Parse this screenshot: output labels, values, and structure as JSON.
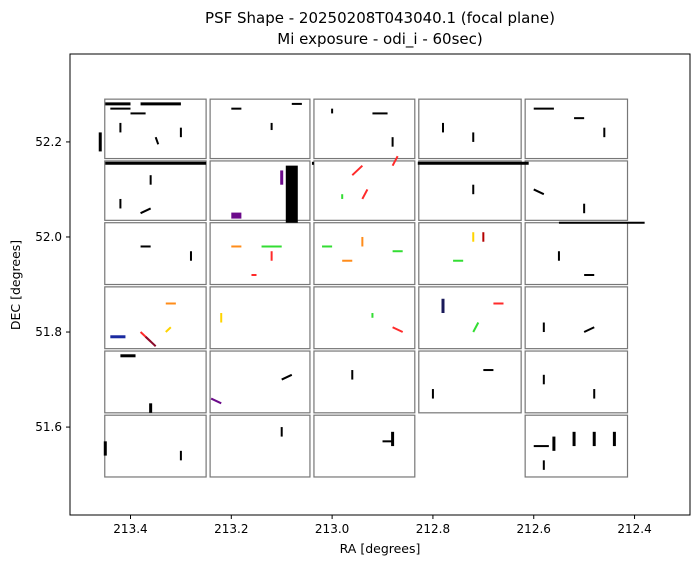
{
  "chart_data": {
    "type": "scatter",
    "title_line1": "PSF Shape - 20250208T043040.1 (focal plane)",
    "title_line2": "Mi exposure - odi_i - 60sec)",
    "xlabel": "RA [degrees]",
    "ylabel": "DEC [degrees]",
    "x_ticks": [
      "213.4",
      "213.2",
      "213.0",
      "212.8",
      "212.6",
      "212.4"
    ],
    "y_ticks": [
      "52.2",
      "52.0",
      "51.8",
      "51.6"
    ],
    "x_tick_values": [
      213.4,
      213.2,
      213.0,
      212.8,
      212.6,
      212.4
    ],
    "y_tick_values": [
      52.2,
      52.0,
      51.8,
      51.6
    ],
    "xlim": [
      213.52,
      212.29
    ],
    "ylim": [
      51.415,
      52.385
    ],
    "grid": false,
    "ota_grid": {
      "columns": [
        213.455,
        213.246,
        213.04,
        212.832,
        212.621,
        212.41
      ],
      "rows": [
        52.29,
        52.165,
        52.162,
        52.032,
        52.03,
        51.9,
        51.895,
        51.765,
        51.76,
        51.635,
        51.625,
        51.495
      ],
      "missing_cells": [
        [
          5,
          3
        ]
      ]
    },
    "psf_vectors": [
      {
        "x": 213.45,
        "y": 52.28,
        "dx": 0.05,
        "dy": 0.0,
        "color": "#000000",
        "w": 3
      },
      {
        "x": 213.38,
        "y": 52.28,
        "dx": 0.08,
        "dy": 0.0,
        "color": "#000000",
        "w": 3
      },
      {
        "x": 213.44,
        "y": 52.27,
        "dx": 0.04,
        "dy": 0.0,
        "color": "#000000",
        "w": 2
      },
      {
        "x": 213.4,
        "y": 52.26,
        "dx": 0.03,
        "dy": 0.0,
        "color": "#000000",
        "w": 2
      },
      {
        "x": 213.46,
        "y": 52.22,
        "dx": 0.0,
        "dy": -0.04,
        "color": "#000000",
        "w": 3
      },
      {
        "x": 213.42,
        "y": 52.24,
        "dx": 0.0,
        "dy": -0.02,
        "color": "#000000",
        "w": 2
      },
      {
        "x": 213.35,
        "y": 52.21,
        "dx": 0.005,
        "dy": -0.015,
        "color": "#000000",
        "w": 2
      },
      {
        "x": 213.3,
        "y": 52.23,
        "dx": 0.0,
        "dy": -0.02,
        "color": "#000000",
        "w": 2
      },
      {
        "x": 213.2,
        "y": 52.27,
        "dx": 0.02,
        "dy": 0.0,
        "color": "#000000",
        "w": 2
      },
      {
        "x": 213.12,
        "y": 52.24,
        "dx": 0.0,
        "dy": -0.015,
        "color": "#000000",
        "w": 2
      },
      {
        "x": 213.08,
        "y": 52.28,
        "dx": 0.02,
        "dy": 0.0,
        "color": "#000000",
        "w": 2
      },
      {
        "x": 213.0,
        "y": 52.27,
        "dx": 0.0,
        "dy": -0.01,
        "color": "#000000",
        "w": 2
      },
      {
        "x": 212.92,
        "y": 52.26,
        "dx": 0.03,
        "dy": 0.0,
        "color": "#000000",
        "w": 2
      },
      {
        "x": 212.88,
        "y": 52.21,
        "dx": 0.0,
        "dy": -0.02,
        "color": "#000000",
        "w": 2
      },
      {
        "x": 212.78,
        "y": 52.24,
        "dx": 0.0,
        "dy": -0.02,
        "color": "#000000",
        "w": 2
      },
      {
        "x": 212.72,
        "y": 52.22,
        "dx": 0.0,
        "dy": -0.02,
        "color": "#000000",
        "w": 2
      },
      {
        "x": 212.6,
        "y": 52.27,
        "dx": 0.04,
        "dy": 0.0,
        "color": "#000000",
        "w": 2
      },
      {
        "x": 212.52,
        "y": 52.25,
        "dx": 0.02,
        "dy": 0.0,
        "color": "#000000",
        "w": 2
      },
      {
        "x": 212.46,
        "y": 52.23,
        "dx": 0.0,
        "dy": -0.02,
        "color": "#000000",
        "w": 2
      },
      {
        "x": 213.45,
        "y": 52.155,
        "dx": 0.2,
        "dy": 0.0,
        "color": "#000000",
        "w": 3
      },
      {
        "x": 213.04,
        "y": 52.155,
        "dx": 0.0,
        "dy": 0.0,
        "color": "#000000",
        "w": 3
      },
      {
        "x": 212.83,
        "y": 52.155,
        "dx": 0.22,
        "dy": 0.0,
        "color": "#000000",
        "w": 3
      },
      {
        "x": 213.36,
        "y": 52.13,
        "dx": 0.0,
        "dy": -0.02,
        "color": "#000000",
        "w": 2
      },
      {
        "x": 213.42,
        "y": 52.08,
        "dx": 0.0,
        "dy": -0.02,
        "color": "#000000",
        "w": 2
      },
      {
        "x": 213.38,
        "y": 52.05,
        "dx": 0.02,
        "dy": 0.01,
        "color": "#000000",
        "w": 2
      },
      {
        "x": 213.2,
        "y": 52.045,
        "dx": 0.02,
        "dy": 0.0,
        "color": "#6b0a8a",
        "w": 6
      },
      {
        "x": 213.08,
        "y": 52.15,
        "dx": 0.0,
        "dy": -0.12,
        "color": "#000000",
        "w": 12
      },
      {
        "x": 213.1,
        "y": 52.14,
        "dx": 0.0,
        "dy": -0.03,
        "color": "#6b0a8a",
        "w": 3
      },
      {
        "x": 212.96,
        "y": 52.13,
        "dx": 0.02,
        "dy": 0.02,
        "color": "#ff2a2a",
        "w": 2
      },
      {
        "x": 212.94,
        "y": 52.08,
        "dx": 0.01,
        "dy": 0.02,
        "color": "#ff2a2a",
        "w": 2
      },
      {
        "x": 212.98,
        "y": 52.09,
        "dx": 0.0,
        "dy": -0.01,
        "color": "#33dd33",
        "w": 2
      },
      {
        "x": 212.88,
        "y": 52.15,
        "dx": 0.01,
        "dy": 0.02,
        "color": "#ff2a2a",
        "w": 2
      },
      {
        "x": 212.72,
        "y": 52.11,
        "dx": 0.0,
        "dy": -0.02,
        "color": "#000000",
        "w": 2
      },
      {
        "x": 212.6,
        "y": 52.1,
        "dx": 0.02,
        "dy": -0.01,
        "color": "#000000",
        "w": 2
      },
      {
        "x": 212.5,
        "y": 52.07,
        "dx": 0.0,
        "dy": -0.02,
        "color": "#000000",
        "w": 2
      },
      {
        "x": 212.55,
        "y": 52.03,
        "dx": 0.17,
        "dy": 0.0,
        "color": "#000000",
        "w": 2
      },
      {
        "x": 213.38,
        "y": 51.98,
        "dx": 0.02,
        "dy": 0.0,
        "color": "#000000",
        "w": 2
      },
      {
        "x": 213.28,
        "y": 51.97,
        "dx": 0.0,
        "dy": -0.02,
        "color": "#000000",
        "w": 2
      },
      {
        "x": 213.2,
        "y": 51.98,
        "dx": 0.02,
        "dy": 0.0,
        "color": "#ff8c1a",
        "w": 2
      },
      {
        "x": 213.14,
        "y": 51.98,
        "dx": 0.04,
        "dy": 0.0,
        "color": "#33dd33",
        "w": 2
      },
      {
        "x": 213.12,
        "y": 51.95,
        "dx": 0.0,
        "dy": 0.02,
        "color": "#ff2a2a",
        "w": 2
      },
      {
        "x": 213.16,
        "y": 51.92,
        "dx": 0.01,
        "dy": 0.0,
        "color": "#ff2a2a",
        "w": 2
      },
      {
        "x": 212.98,
        "y": 51.95,
        "dx": 0.02,
        "dy": 0.0,
        "color": "#ff8c1a",
        "w": 2
      },
      {
        "x": 212.94,
        "y": 51.98,
        "dx": 0.0,
        "dy": 0.02,
        "color": "#ff8c1a",
        "w": 2
      },
      {
        "x": 213.02,
        "y": 51.98,
        "dx": 0.02,
        "dy": 0.0,
        "color": "#33dd33",
        "w": 2
      },
      {
        "x": 212.88,
        "y": 51.97,
        "dx": 0.02,
        "dy": 0.0,
        "color": "#33dd33",
        "w": 2
      },
      {
        "x": 212.72,
        "y": 51.99,
        "dx": 0.0,
        "dy": 0.02,
        "color": "#ffd400",
        "w": 2
      },
      {
        "x": 212.7,
        "y": 51.99,
        "dx": 0.0,
        "dy": 0.02,
        "color": "#b40000",
        "w": 2
      },
      {
        "x": 212.76,
        "y": 51.95,
        "dx": 0.02,
        "dy": 0.0,
        "color": "#33dd33",
        "w": 2
      },
      {
        "x": 212.55,
        "y": 51.97,
        "dx": 0.0,
        "dy": -0.02,
        "color": "#000000",
        "w": 2
      },
      {
        "x": 212.5,
        "y": 51.92,
        "dx": 0.02,
        "dy": 0.0,
        "color": "#000000",
        "w": 2
      },
      {
        "x": 213.44,
        "y": 51.79,
        "dx": 0.03,
        "dy": 0.0,
        "color": "#1a2aa0",
        "w": 3
      },
      {
        "x": 213.38,
        "y": 51.8,
        "dx": 0.02,
        "dy": -0.02,
        "color": "#ff2a2a",
        "w": 2
      },
      {
        "x": 213.37,
        "y": 51.79,
        "dx": 0.02,
        "dy": -0.02,
        "color": "#8a0a2a",
        "w": 2
      },
      {
        "x": 213.33,
        "y": 51.8,
        "dx": 0.01,
        "dy": 0.01,
        "color": "#ffd400",
        "w": 2
      },
      {
        "x": 213.33,
        "y": 51.86,
        "dx": 0.02,
        "dy": 0.0,
        "color": "#ff8c1a",
        "w": 2
      },
      {
        "x": 213.22,
        "y": 51.82,
        "dx": 0.0,
        "dy": 0.02,
        "color": "#ffd400",
        "w": 2
      },
      {
        "x": 212.92,
        "y": 51.83,
        "dx": 0.0,
        "dy": 0.01,
        "color": "#33dd33",
        "w": 2
      },
      {
        "x": 212.88,
        "y": 51.81,
        "dx": 0.02,
        "dy": -0.01,
        "color": "#ff2a2a",
        "w": 2
      },
      {
        "x": 212.78,
        "y": 51.87,
        "dx": 0.0,
        "dy": -0.03,
        "color": "#1a1a5a",
        "w": 3
      },
      {
        "x": 212.72,
        "y": 51.8,
        "dx": 0.01,
        "dy": 0.02,
        "color": "#33dd33",
        "w": 2
      },
      {
        "x": 212.68,
        "y": 51.86,
        "dx": 0.02,
        "dy": 0.0,
        "color": "#ff2a2a",
        "w": 2
      },
      {
        "x": 212.58,
        "y": 51.82,
        "dx": 0.0,
        "dy": -0.02,
        "color": "#000000",
        "w": 2
      },
      {
        "x": 212.5,
        "y": 51.8,
        "dx": 0.02,
        "dy": 0.01,
        "color": "#000000",
        "w": 2
      },
      {
        "x": 213.42,
        "y": 51.75,
        "dx": 0.03,
        "dy": 0.0,
        "color": "#000000",
        "w": 3
      },
      {
        "x": 213.36,
        "y": 51.65,
        "dx": 0.0,
        "dy": -0.02,
        "color": "#000000",
        "w": 3
      },
      {
        "x": 213.24,
        "y": 51.66,
        "dx": 0.02,
        "dy": -0.01,
        "color": "#6b0a8a",
        "w": 2
      },
      {
        "x": 213.1,
        "y": 51.7,
        "dx": 0.02,
        "dy": 0.01,
        "color": "#000000",
        "w": 2
      },
      {
        "x": 212.96,
        "y": 51.72,
        "dx": 0.0,
        "dy": -0.02,
        "color": "#000000",
        "w": 2
      },
      {
        "x": 212.8,
        "y": 51.68,
        "dx": 0.0,
        "dy": -0.02,
        "color": "#000000",
        "w": 2
      },
      {
        "x": 212.7,
        "y": 51.72,
        "dx": 0.02,
        "dy": 0.0,
        "color": "#000000",
        "w": 2
      },
      {
        "x": 212.58,
        "y": 51.71,
        "dx": 0.0,
        "dy": -0.02,
        "color": "#000000",
        "w": 2
      },
      {
        "x": 212.48,
        "y": 51.68,
        "dx": 0.0,
        "dy": -0.02,
        "color": "#000000",
        "w": 2
      },
      {
        "x": 213.45,
        "y": 51.57,
        "dx": 0.0,
        "dy": -0.03,
        "color": "#000000",
        "w": 3
      },
      {
        "x": 213.3,
        "y": 51.55,
        "dx": 0.0,
        "dy": -0.02,
        "color": "#000000",
        "w": 2
      },
      {
        "x": 213.1,
        "y": 51.6,
        "dx": 0.0,
        "dy": -0.02,
        "color": "#000000",
        "w": 2
      },
      {
        "x": 212.9,
        "y": 51.57,
        "dx": 0.02,
        "dy": 0.0,
        "color": "#000000",
        "w": 2
      },
      {
        "x": 212.88,
        "y": 51.59,
        "dx": 0.0,
        "dy": -0.03,
        "color": "#000000",
        "w": 3
      },
      {
        "x": 212.56,
        "y": 51.58,
        "dx": 0.0,
        "dy": -0.03,
        "color": "#000000",
        "w": 3
      },
      {
        "x": 212.52,
        "y": 51.59,
        "dx": 0.0,
        "dy": -0.03,
        "color": "#000000",
        "w": 3
      },
      {
        "x": 212.48,
        "y": 51.59,
        "dx": 0.0,
        "dy": -0.03,
        "color": "#000000",
        "w": 3
      },
      {
        "x": 212.44,
        "y": 51.59,
        "dx": 0.0,
        "dy": -0.03,
        "color": "#000000",
        "w": 3
      },
      {
        "x": 212.58,
        "y": 51.53,
        "dx": 0.0,
        "dy": -0.02,
        "color": "#000000",
        "w": 2
      },
      {
        "x": 212.6,
        "y": 51.56,
        "dx": 0.03,
        "dy": 0.0,
        "color": "#000000",
        "w": 2
      }
    ]
  }
}
